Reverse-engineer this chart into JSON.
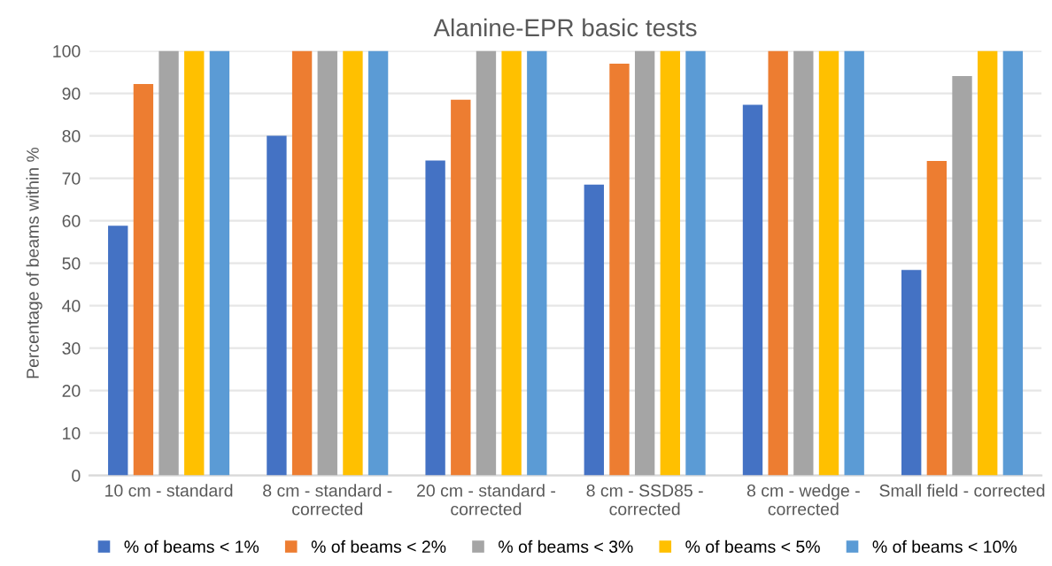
{
  "chart_data": {
    "type": "bar",
    "title": "Alanine-EPR basic tests",
    "ylabel": "Percentage of beams within %",
    "categories": [
      "10 cm - standard",
      "8 cm - standard -\ncorrected",
      "20 cm - standard -\ncorrected",
      "8 cm - SSD85 -\ncorrected",
      "8 cm - wedge -\ncorrected",
      "Small field - corrected"
    ],
    "series": [
      {
        "name": "% of beams < 1%",
        "color": "#4472c4",
        "values": [
          58.8,
          80,
          74.2,
          68.5,
          87.3,
          48.4
        ]
      },
      {
        "name": "% of beams < 2%",
        "color": "#ed7d31",
        "values": [
          92.2,
          100,
          88.5,
          97.0,
          100,
          74.1
        ]
      },
      {
        "name": "% of beams < 3%",
        "color": "#a5a5a5",
        "values": [
          100,
          100,
          100,
          100,
          100,
          94.1
        ]
      },
      {
        "name": "% of beams < 5%",
        "color": "#ffc000",
        "values": [
          100,
          100,
          100,
          100,
          100,
          100
        ]
      },
      {
        "name": "% of beams < 10%",
        "color": "#5b9bd5",
        "values": [
          100,
          100,
          100,
          100,
          100,
          100
        ]
      }
    ],
    "ylim": [
      0,
      100
    ],
    "yticks": [
      0,
      10,
      20,
      30,
      40,
      50,
      60,
      70,
      80,
      90,
      100
    ],
    "grid": "y",
    "legend": "bottom"
  }
}
